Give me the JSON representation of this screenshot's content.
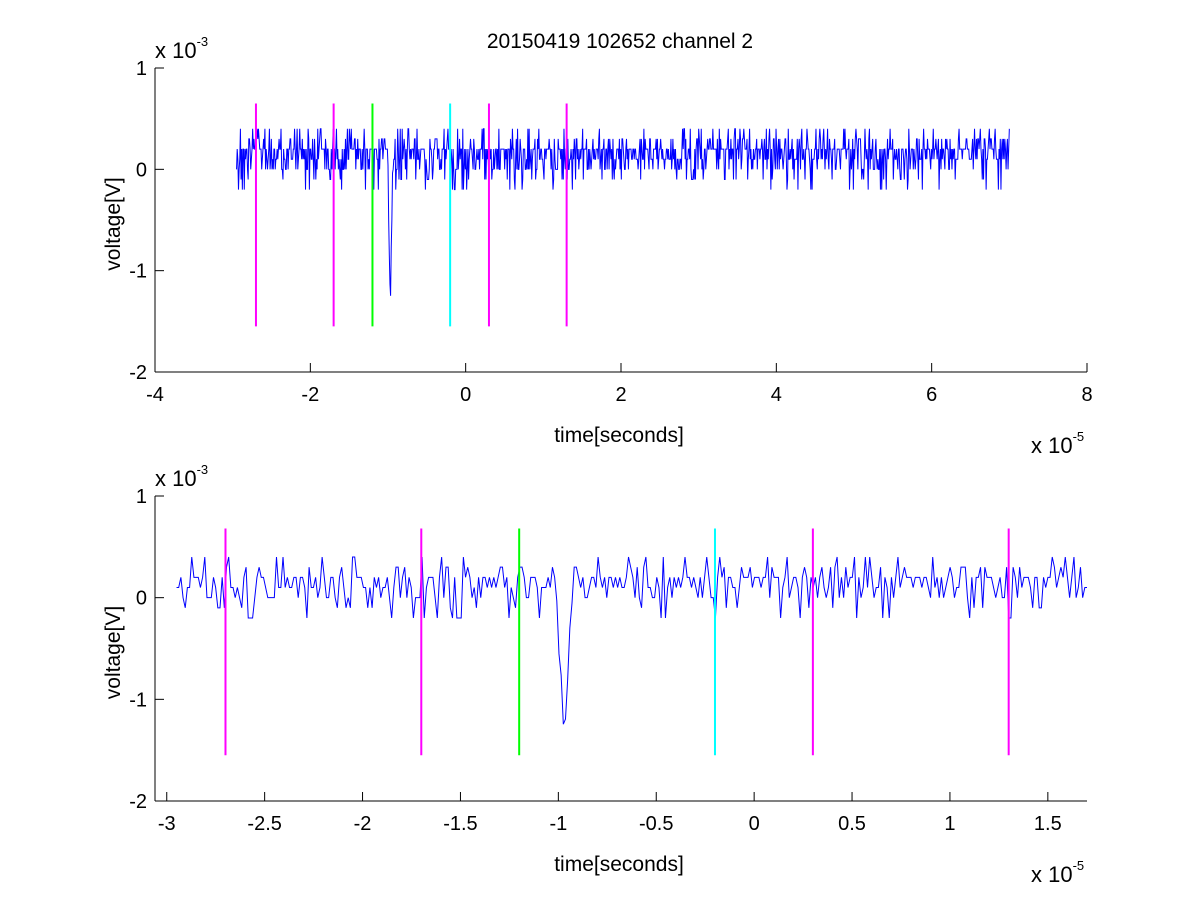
{
  "figure": {
    "title": "20150419 102652 channel 2"
  },
  "chart_data": [
    {
      "type": "line",
      "title": "20150419 102652 channel 2",
      "xlabel": "time[seconds]",
      "ylabel": "voltage[V]",
      "x_exponent_base": "x 10",
      "x_exponent": "-5",
      "y_exponent_base": "x 10",
      "y_exponent": "-3",
      "xlim": [
        -4,
        8
      ],
      "ylim": [
        -2,
        1
      ],
      "x_ticks": [
        -4,
        -2,
        0,
        2,
        4,
        6,
        8
      ],
      "x_tick_labels": [
        "-4",
        "-2",
        "0",
        "2",
        "4",
        "6",
        "8"
      ],
      "y_ticks": [
        -2,
        -1,
        0,
        1
      ],
      "y_tick_labels": [
        "-2",
        "-1",
        "0",
        "1"
      ],
      "grid": false,
      "series": [
        {
          "color": "#0000ff",
          "x_range": [
            -2.95,
            7.0
          ],
          "samples": 1200,
          "spike": {
            "x": -0.97,
            "min": -1.4
          }
        }
      ],
      "markers": [
        {
          "x": -2.7,
          "color": "#ff00ff",
          "y_range": [
            -1.55,
            0.65
          ]
        },
        {
          "x": -1.7,
          "color": "#ff00ff",
          "y_range": [
            -1.55,
            0.65
          ]
        },
        {
          "x": -1.2,
          "color": "#00ff00",
          "y_range": [
            -1.55,
            0.65
          ]
        },
        {
          "x": -0.2,
          "color": "#00ffff",
          "y_range": [
            -1.55,
            0.65
          ]
        },
        {
          "x": 0.3,
          "color": "#ff00ff",
          "y_range": [
            -1.55,
            0.65
          ]
        },
        {
          "x": 1.3,
          "color": "#ff00ff",
          "y_range": [
            -1.55,
            0.65
          ]
        }
      ]
    },
    {
      "type": "line",
      "xlabel": "time[seconds]",
      "ylabel": "voltage[V]",
      "x_exponent_base": "x 10",
      "x_exponent": "-5",
      "y_exponent_base": "x 10",
      "y_exponent": "-3",
      "xlim": [
        -3.06,
        1.7
      ],
      "ylim": [
        -2,
        1
      ],
      "x_ticks": [
        -3,
        -2.5,
        -2,
        -1.5,
        -1,
        -0.5,
        0,
        0.5,
        1,
        1.5
      ],
      "x_tick_labels": [
        "-3",
        "-2.5",
        "-2",
        "-1.5",
        "-1",
        "-0.5",
        "0",
        "0.5",
        "1",
        "1.5"
      ],
      "y_ticks": [
        -2,
        -1,
        0,
        1
      ],
      "y_tick_labels": [
        "-2",
        "-1",
        "0",
        "1"
      ],
      "grid": false,
      "series": [
        {
          "color": "#0000ff",
          "x_range": [
            -2.95,
            1.7
          ],
          "samples": 420,
          "spike": {
            "x": -0.97,
            "min": -1.4
          }
        }
      ],
      "markers": [
        {
          "x": -2.7,
          "color": "#ff00ff",
          "y_range": [
            -1.55,
            0.68
          ]
        },
        {
          "x": -1.7,
          "color": "#ff00ff",
          "y_range": [
            -1.55,
            0.68
          ]
        },
        {
          "x": -1.2,
          "color": "#00ff00",
          "y_range": [
            -1.55,
            0.68
          ]
        },
        {
          "x": -0.2,
          "color": "#00ffff",
          "y_range": [
            -1.55,
            0.68
          ]
        },
        {
          "x": 0.3,
          "color": "#ff00ff",
          "y_range": [
            -1.55,
            0.68
          ]
        },
        {
          "x": 1.3,
          "color": "#ff00ff",
          "y_range": [
            -1.55,
            0.68
          ]
        }
      ]
    }
  ]
}
